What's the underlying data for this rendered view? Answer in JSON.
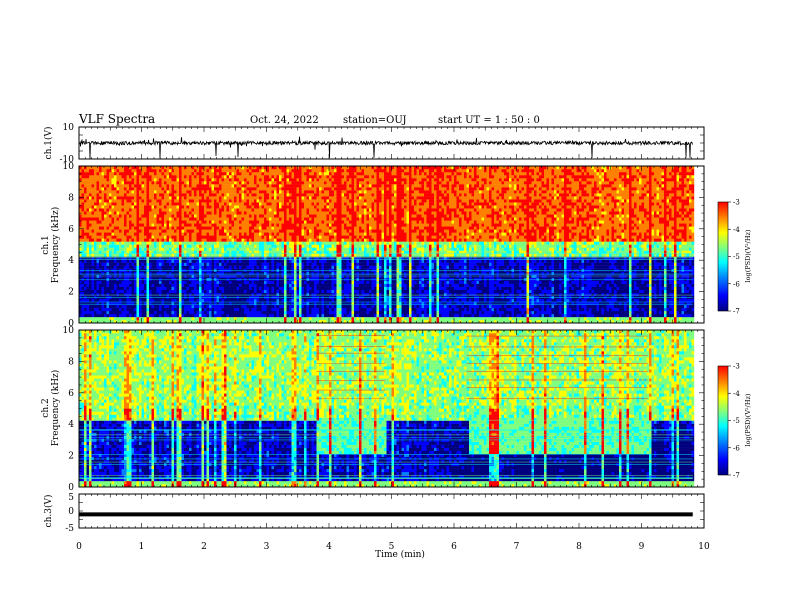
{
  "header": {
    "title": "VLF Spectra",
    "date": "Oct. 24, 2022",
    "station": "station=OUJ",
    "start": "start  UT =   1 : 50 : 0"
  },
  "chart_data": [
    {
      "type": "line",
      "name": "ch1-waveform",
      "ylabel": "ch.1(V)",
      "ylim": [
        -10,
        10
      ],
      "yticks": [
        "10",
        "-10"
      ],
      "xlim": [
        0,
        10
      ],
      "baseline": 0,
      "data_end_min": 9.82
    },
    {
      "type": "heatmap",
      "name": "ch1-spectrogram",
      "ylabel_line1": "ch.1",
      "ylabel_line2": "Frequency (kHz)",
      "ylim": [
        0,
        10
      ],
      "yticks": [
        "0",
        "2",
        "4",
        "6",
        "8",
        "10"
      ],
      "xlim": [
        0,
        10
      ],
      "data_end_min": 9.82,
      "colorbar": {
        "label": "log(PSD)(V²/Hz)",
        "range": [
          -7,
          -3
        ],
        "ticks": [
          "-3",
          "-4",
          "-5",
          "-6",
          "-7"
        ]
      }
    },
    {
      "type": "heatmap",
      "name": "ch2-spectrogram",
      "ylabel_line1": "ch.2",
      "ylabel_line2": "Frequency (kHz)",
      "ylim": [
        0,
        10
      ],
      "yticks": [
        "0",
        "2",
        "4",
        "6",
        "8",
        "10"
      ],
      "xlim": [
        0,
        10
      ],
      "data_end_min": 9.82,
      "colorbar": {
        "label": "log(PSD)(V²/Hz)",
        "range": [
          -7,
          -3
        ],
        "ticks": [
          "-3",
          "-4",
          "-5",
          "-6",
          "-7"
        ]
      }
    },
    {
      "type": "line",
      "name": "ch3-waveform",
      "ylabel": "ch.3(V)",
      "ylim": [
        -5,
        5
      ],
      "yticks": [
        "5",
        "0",
        "-5"
      ],
      "xlim": [
        0,
        10
      ],
      "baseline": -1,
      "data_end_min": 9.82
    }
  ],
  "xaxis": {
    "label": "Time (min)",
    "ticks": [
      "0",
      "1",
      "2",
      "3",
      "4",
      "5",
      "6",
      "7",
      "8",
      "9",
      "10"
    ]
  },
  "colormap": [
    "#00007f",
    "#0000ff",
    "#007fff",
    "#00ffff",
    "#7fff7f",
    "#ffff00",
    "#ff7f00",
    "#ff0000"
  ]
}
